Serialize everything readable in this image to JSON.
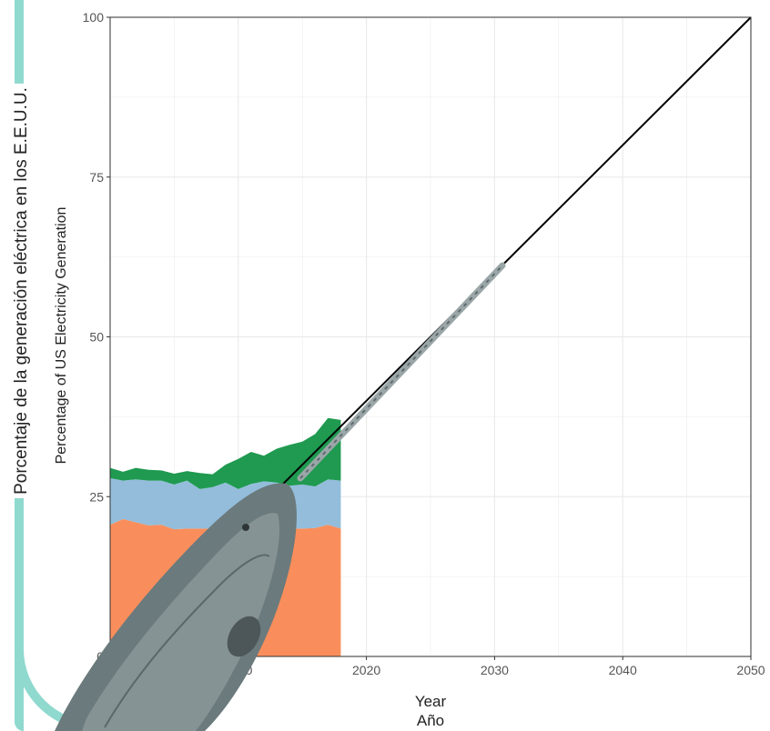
{
  "outer_axis_label": "Porcentaje de la generación eléctrica en los E.E.U.U.",
  "xlabel_es": "Año",
  "colors": {
    "frame": "#8fd9cf",
    "layer_bottom": "#f98e5c",
    "layer_middle": "#93bddb",
    "layer_top": "#1f9a50",
    "line": "#000000",
    "grid": "#ebebeb"
  },
  "chart_data": {
    "type": "area",
    "title": "",
    "xlabel": "Year",
    "ylabel": "Percentage of US Electricity Generation",
    "xlim": [
      2000,
      2050
    ],
    "ylim": [
      0,
      100
    ],
    "x_ticks": [
      "2000",
      "2010",
      "2020",
      "2030",
      "2040",
      "2050"
    ],
    "y_ticks": [
      "0",
      "25",
      "50",
      "75",
      "100"
    ],
    "grid": true,
    "x": [
      2000,
      2001,
      2002,
      2003,
      2004,
      2005,
      2006,
      2007,
      2008,
      2009,
      2010,
      2011,
      2012,
      2013,
      2014,
      2015,
      2016,
      2017,
      2018
    ],
    "series": [
      {
        "values": [
          20.6,
          21.5,
          21.0,
          20.5,
          20.6,
          19.9,
          20.0,
          20.0,
          20.0,
          20.3,
          20.0,
          20.0,
          20.0,
          20.2,
          20.0,
          20.0,
          20.1,
          20.6,
          20.0
        ]
      },
      {
        "values": [
          7.3,
          6.0,
          6.7,
          7.0,
          6.9,
          7.0,
          7.5,
          6.2,
          6.5,
          6.9,
          6.2,
          7.0,
          7.4,
          7.0,
          6.7,
          6.9,
          6.5,
          7.1,
          7.5
        ]
      },
      {
        "values": [
          1.6,
          1.4,
          1.8,
          1.7,
          1.6,
          1.7,
          1.5,
          2.5,
          2.0,
          2.8,
          4.7,
          5.0,
          4.0,
          5.3,
          6.4,
          6.7,
          8.2,
          9.6,
          9.5
        ]
      },
      {
        "type": "line",
        "x": [
          2000,
          2050
        ],
        "values": [
          0,
          100
        ]
      }
    ]
  }
}
